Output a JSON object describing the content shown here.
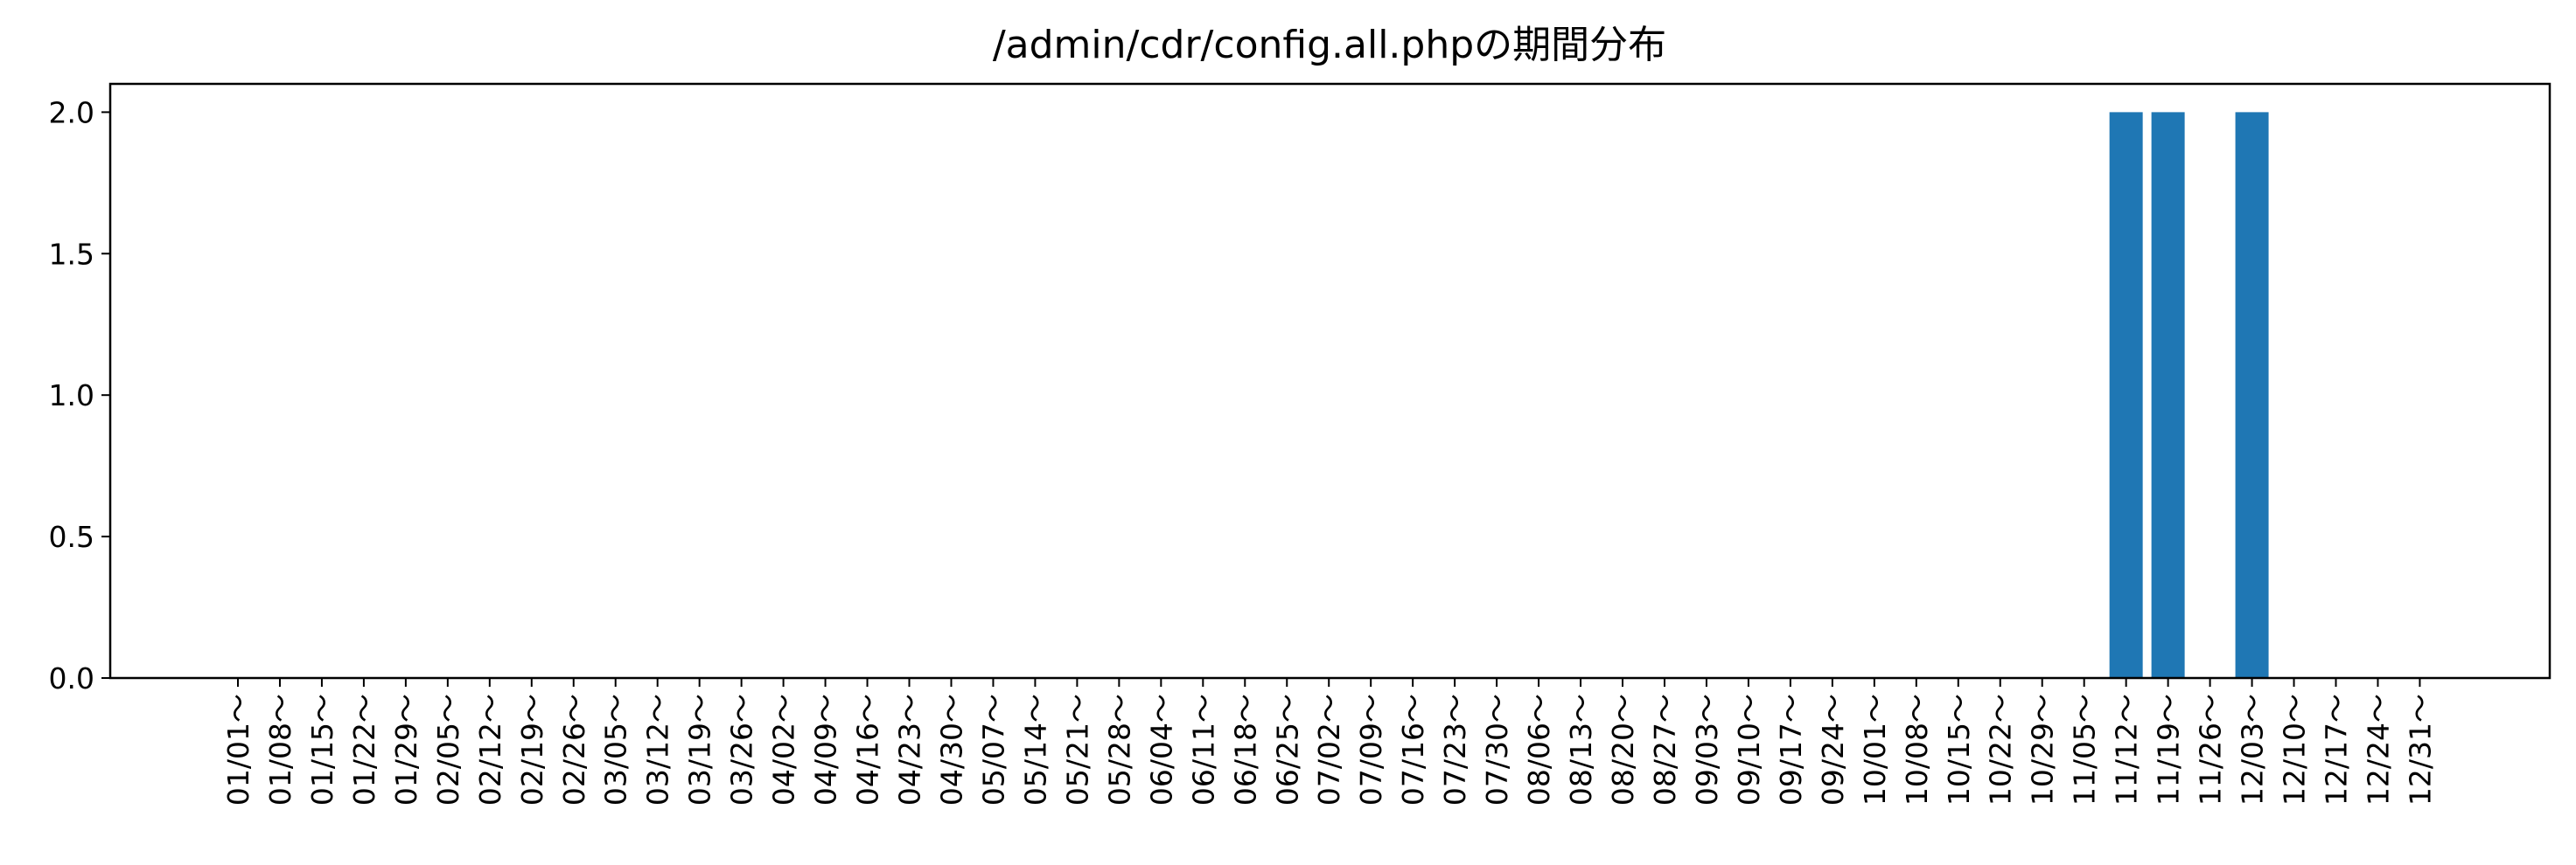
{
  "chart_data": {
    "type": "bar",
    "title": "/admin/cdr/config.all.phpの期間分布",
    "xlabel": "",
    "ylabel": "",
    "ylim": [
      0,
      2.1
    ],
    "yticks": [
      "0.0",
      "0.5",
      "1.0",
      "1.5",
      "2.0"
    ],
    "ytick_values": [
      0,
      0.5,
      1.0,
      1.5,
      2.0
    ],
    "grid": false,
    "bar_color": "#1f77b4",
    "categories": [
      "01/01～",
      "01/08～",
      "01/15～",
      "01/22～",
      "01/29～",
      "02/05～",
      "02/12～",
      "02/19～",
      "02/26～",
      "03/05～",
      "03/12～",
      "03/19～",
      "03/26～",
      "04/02～",
      "04/09～",
      "04/16～",
      "04/23～",
      "04/30～",
      "05/07～",
      "05/14～",
      "05/21～",
      "05/28～",
      "06/04～",
      "06/11～",
      "06/18～",
      "06/25～",
      "07/02～",
      "07/09～",
      "07/16～",
      "07/23～",
      "07/30～",
      "08/06～",
      "08/13～",
      "08/20～",
      "08/27～",
      "09/03～",
      "09/10～",
      "09/17～",
      "09/24～",
      "10/01～",
      "10/08～",
      "10/15～",
      "10/22～",
      "10/29～",
      "11/05～",
      "11/12～",
      "11/19～",
      "11/26～",
      "12/03～",
      "12/10～",
      "12/17～",
      "12/24～",
      "12/31～"
    ],
    "values": [
      0,
      0,
      0,
      0,
      0,
      0,
      0,
      0,
      0,
      0,
      0,
      0,
      0,
      0,
      0,
      0,
      0,
      0,
      0,
      0,
      0,
      0,
      0,
      0,
      0,
      0,
      0,
      0,
      0,
      0,
      0,
      0,
      0,
      0,
      0,
      0,
      0,
      0,
      0,
      0,
      0,
      0,
      0,
      0,
      0,
      2,
      2,
      0,
      2,
      0,
      0,
      0,
      0
    ]
  }
}
